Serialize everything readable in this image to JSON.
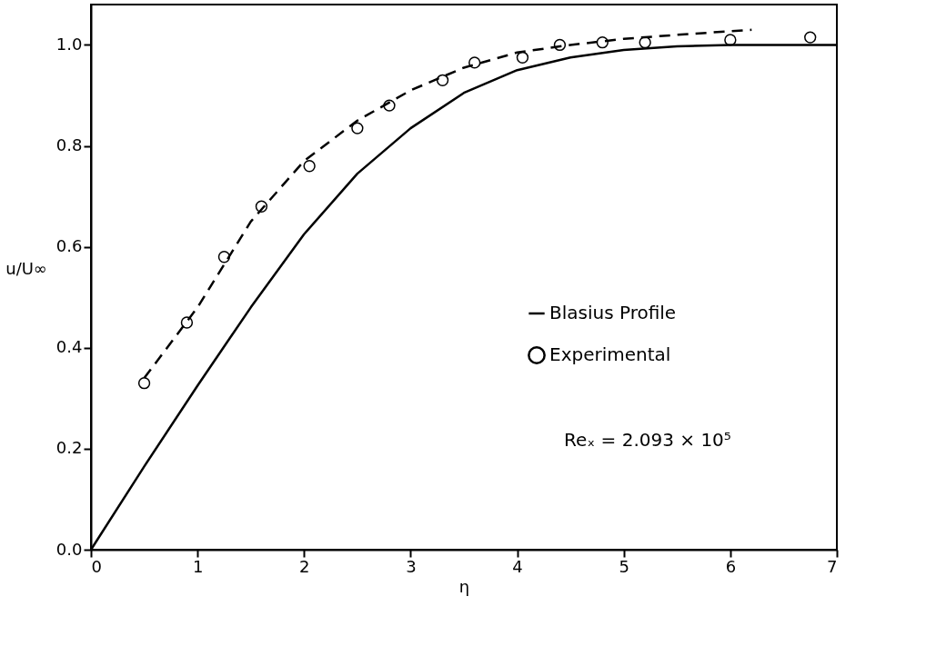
{
  "chart_data": {
    "type": "line",
    "xlabel": "η",
    "ylabel": "u/U∞",
    "xlim": [
      0,
      7
    ],
    "ylim": [
      0,
      1.08
    ],
    "xticks": [
      0,
      1,
      2,
      3,
      4,
      5,
      6,
      7
    ],
    "yticks": [
      {
        "value": 0,
        "label": "0.0"
      },
      0.2,
      0.4,
      0.6,
      0.8,
      {
        "value": 1,
        "label": "1.0"
      }
    ],
    "grid": false,
    "legend": "right",
    "series": [
      {
        "name": "Blasius Profile",
        "type": "line",
        "color": "#000000",
        "line_style": "solid",
        "marker": "none",
        "x": [
          0,
          0.5,
          1,
          1.5,
          2,
          2.5,
          3,
          3.5,
          4,
          4.5,
          5,
          5.5,
          6,
          6.5,
          7
        ],
        "values": [
          0,
          0.165,
          0.325,
          0.48,
          0.625,
          0.745,
          0.835,
          0.905,
          0.95,
          0.975,
          0.99,
          0.997,
          1.0,
          1.0,
          1.0
        ]
      },
      {
        "name": "Experimental",
        "type": "scatter",
        "color": "#000000",
        "marker": "circle",
        "x": [
          0.5,
          0.9,
          1.25,
          1.6,
          2.05,
          2.5,
          2.8,
          3.3,
          3.6,
          4.05,
          4.4,
          4.8,
          5.2,
          6.0,
          6.75
        ],
        "values": [
          0.33,
          0.45,
          0.58,
          0.68,
          0.76,
          0.835,
          0.88,
          0.93,
          0.965,
          0.975,
          1.0,
          1.005,
          1.005,
          1.01,
          1.015
        ]
      },
      {
        "type": "line",
        "color": "#000000",
        "line_style": "dashed",
        "marker": "none",
        "x": [
          0.5,
          1,
          1.5,
          2,
          2.5,
          3,
          3.5,
          4,
          4.5,
          5,
          5.5,
          6.2
        ],
        "values": [
          0.34,
          0.48,
          0.65,
          0.77,
          0.85,
          0.91,
          0.955,
          0.985,
          1.0,
          1.012,
          1.02,
          1.03
        ]
      }
    ],
    "annotations": [
      "Reₓ = 2.093 × 10⁵"
    ]
  }
}
